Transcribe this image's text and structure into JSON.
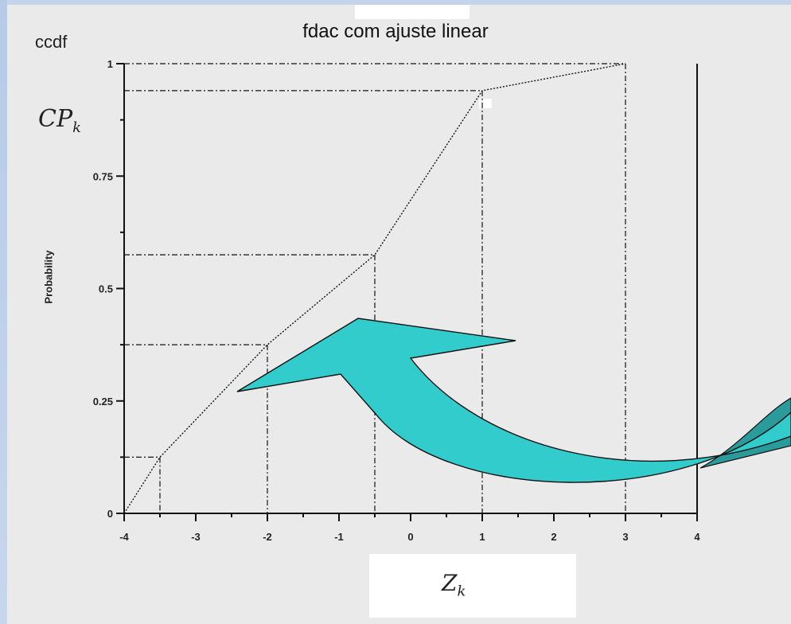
{
  "chart_data": {
    "type": "line",
    "title": "fdac com ajuste linear",
    "ylabel": "Probability",
    "xlabel": "",
    "top_left_label": "ccdf",
    "cp_symbol": "CP",
    "cp_subscript": "k",
    "z_symbol": "Z",
    "z_subscript": "k",
    "xlim": [
      -4,
      4
    ],
    "ylim": [
      0,
      1
    ],
    "x_ticks": [
      -4,
      -3,
      -2,
      -1,
      0,
      1,
      2,
      3,
      4
    ],
    "y_ticks": [
      0,
      0.25,
      0.5,
      0.75,
      1
    ],
    "y_tick_labels": [
      "0",
      "0.25",
      "0.5",
      "0.75",
      "1"
    ],
    "x_tick_labels": [
      "-4",
      "-3",
      "-2",
      "-1",
      "0",
      "1",
      "2",
      "3",
      "4"
    ],
    "series": [
      {
        "x": [
          -4,
          -3.5,
          -2,
          -0.5,
          1,
          3
        ],
        "y": [
          0,
          0.125,
          0.375,
          0.575,
          0.94,
          1
        ]
      }
    ],
    "grid": false,
    "annotation": "curved arrow",
    "arrow_color": "#33cccc"
  }
}
